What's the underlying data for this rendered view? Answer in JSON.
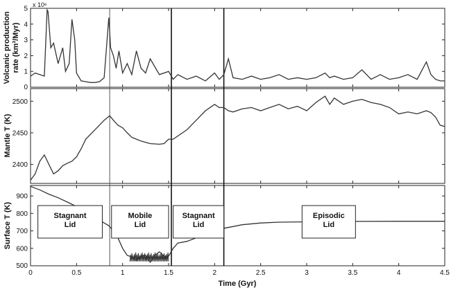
{
  "chart_data": [
    {
      "type": "line",
      "panel": "top",
      "ylabel_line1": "Volcanic production",
      "ylabel_line2": "rate (km³/Myr)",
      "y_multiplier": "x 10⁶",
      "xlim": [
        0,
        4.5
      ],
      "ylim": [
        0,
        5
      ],
      "yticks": [
        0,
        1,
        2,
        3,
        4,
        5
      ],
      "series": [
        {
          "x": [
            0,
            0.05,
            0.1,
            0.15,
            0.18,
            0.19,
            0.22,
            0.25,
            0.3,
            0.35,
            0.38,
            0.42,
            0.45,
            0.48,
            0.5,
            0.55,
            0.6,
            0.65,
            0.7,
            0.75,
            0.8,
            0.85,
            0.86,
            0.87,
            0.9,
            0.93,
            0.96,
            1.0,
            1.05,
            1.1,
            1.15,
            1.2,
            1.25,
            1.3,
            1.4,
            1.5,
            1.55,
            1.6,
            1.7,
            1.8,
            1.9,
            2.0,
            2.05,
            2.1,
            2.15,
            2.2,
            2.3,
            2.4,
            2.5,
            2.6,
            2.7,
            2.8,
            2.9,
            3.0,
            3.1,
            3.2,
            3.25,
            3.3,
            3.4,
            3.5,
            3.6,
            3.7,
            3.8,
            3.9,
            4.0,
            4.1,
            4.2,
            4.3,
            4.35,
            4.4,
            4.45,
            4.5
          ],
          "y": [
            0.7,
            0.9,
            0.8,
            0.7,
            4.9,
            4.8,
            2.5,
            2.8,
            1.5,
            2.5,
            1.0,
            1.5,
            4.3,
            3.0,
            0.9,
            0.4,
            0.35,
            0.3,
            0.3,
            0.35,
            0.6,
            4.4,
            3.5,
            2.5,
            2.0,
            1.2,
            2.3,
            0.9,
            1.5,
            0.8,
            2.3,
            1.2,
            0.9,
            1.8,
            0.8,
            1.0,
            0.5,
            0.8,
            0.5,
            0.7,
            0.4,
            0.9,
            0.5,
            0.8,
            1.8,
            0.6,
            0.5,
            0.7,
            0.5,
            0.6,
            0.8,
            0.5,
            0.6,
            0.5,
            0.6,
            0.9,
            0.6,
            0.7,
            0.5,
            0.6,
            1.1,
            0.5,
            0.8,
            0.5,
            0.6,
            0.8,
            0.5,
            1.6,
            0.8,
            0.5,
            0.4,
            0.4
          ]
        }
      ]
    },
    {
      "type": "line",
      "panel": "middle",
      "ylabel": "Mantle T (K)",
      "xlim": [
        0,
        4.5
      ],
      "ylim": [
        2370,
        2520
      ],
      "yticks": [
        2400,
        2450,
        2500
      ],
      "series": [
        {
          "x": [
            0,
            0.05,
            0.1,
            0.15,
            0.2,
            0.25,
            0.3,
            0.35,
            0.4,
            0.45,
            0.5,
            0.55,
            0.6,
            0.7,
            0.8,
            0.86,
            0.9,
            0.95,
            1.0,
            1.05,
            1.1,
            1.15,
            1.2,
            1.3,
            1.4,
            1.45,
            1.5,
            1.55,
            1.6,
            1.7,
            1.8,
            1.9,
            2.0,
            2.05,
            2.1,
            2.15,
            2.2,
            2.3,
            2.4,
            2.5,
            2.6,
            2.7,
            2.8,
            2.9,
            3.0,
            3.1,
            3.2,
            3.25,
            3.3,
            3.4,
            3.5,
            3.6,
            3.7,
            3.8,
            3.9,
            4.0,
            4.1,
            4.2,
            4.3,
            4.35,
            4.4,
            4.45,
            4.5
          ],
          "y": [
            2375,
            2385,
            2405,
            2415,
            2400,
            2385,
            2390,
            2398,
            2402,
            2405,
            2412,
            2425,
            2440,
            2455,
            2470,
            2477,
            2470,
            2462,
            2458,
            2450,
            2443,
            2440,
            2437,
            2433,
            2432,
            2433,
            2440,
            2440,
            2445,
            2455,
            2470,
            2485,
            2495,
            2490,
            2490,
            2485,
            2483,
            2488,
            2490,
            2485,
            2490,
            2495,
            2488,
            2492,
            2485,
            2498,
            2508,
            2495,
            2505,
            2495,
            2500,
            2503,
            2498,
            2495,
            2490,
            2480,
            2483,
            2480,
            2485,
            2482,
            2475,
            2462,
            2460
          ]
        }
      ]
    },
    {
      "type": "line",
      "panel": "bottom",
      "ylabel": "Surface T (K)",
      "xlabel": "Time (Gyr)",
      "xlim": [
        0,
        4.5
      ],
      "ylim": [
        500,
        960
      ],
      "yticks": [
        500,
        600,
        700,
        800,
        900
      ],
      "xticks": [
        0,
        0.5,
        1,
        1.5,
        2,
        2.5,
        3,
        3.5,
        4,
        4.5
      ],
      "series": [
        {
          "x": [
            0,
            0.1,
            0.2,
            0.3,
            0.4,
            0.5,
            0.6,
            0.7,
            0.8,
            0.85,
            0.9,
            0.95,
            1.0,
            1.05,
            1.1,
            1.15,
            1.2,
            1.25,
            1.3,
            1.35,
            1.4,
            1.45,
            1.5,
            1.55,
            1.6,
            1.7,
            1.8,
            1.9,
            2.0,
            2.1,
            2.2,
            2.3,
            2.5,
            2.7,
            3.0,
            3.5,
            4.0,
            4.5
          ],
          "y": [
            955,
            935,
            910,
            890,
            865,
            840,
            810,
            780,
            745,
            730,
            700,
            660,
            600,
            560,
            550,
            530,
            555,
            560,
            520,
            560,
            580,
            555,
            555,
            600,
            630,
            640,
            660,
            675,
            685,
            715,
            725,
            735,
            745,
            750,
            752,
            754,
            755,
            755
          ]
        }
      ],
      "noise_region": [
        1.08,
        1.5
      ]
    }
  ],
  "x_axis": {
    "label": "Time (Gyr)",
    "tick_labels": [
      "0",
      "0.5",
      "1",
      "1.5",
      "2",
      "2.5",
      "3",
      "3.5",
      "4",
      "4.5"
    ]
  },
  "vertical_lines": [
    0.86,
    1.53,
    2.1
  ],
  "regions": [
    {
      "line1": "Stagnant",
      "line2": "Lid",
      "x0": 0.08,
      "x1": 0.78
    },
    {
      "line1": "Mobile",
      "line2": "Lid",
      "x0": 0.88,
      "x1": 1.5
    },
    {
      "line1": "Stagnant",
      "line2": "Lid",
      "x0": 1.55,
      "x1": 2.1
    },
    {
      "line1": "Episodic",
      "line2": "Lid",
      "x0": 2.95,
      "x1": 3.53
    }
  ],
  "y_ticks_labels": {
    "top": [
      "0",
      "1",
      "2",
      "3",
      "4",
      "5"
    ],
    "middle": [
      "2400",
      "2450",
      "2500"
    ],
    "bottom": [
      "500",
      "600",
      "700",
      "800",
      "900"
    ]
  }
}
